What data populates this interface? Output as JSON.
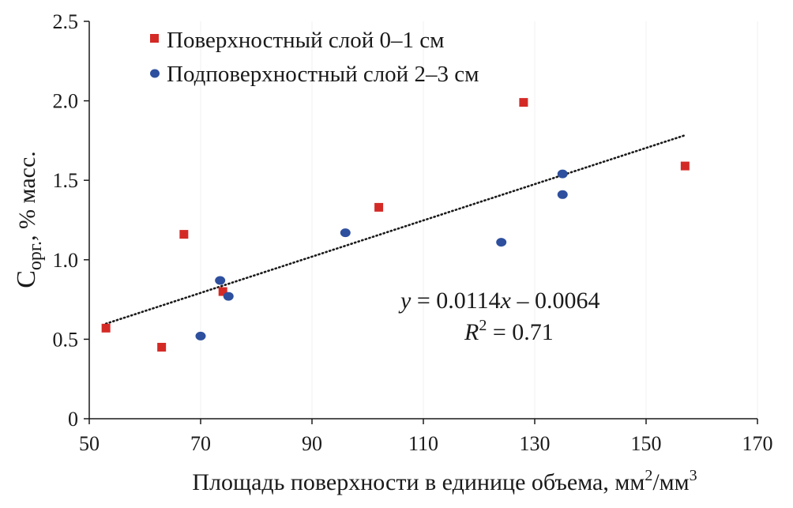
{
  "chart_data": {
    "type": "scatter",
    "title": "",
    "xlabel": "Площадь поверхности в единице объема, мм",
    "xlabel_sup1": "2",
    "xlabel_mid": "/мм",
    "xlabel_sup2": "3",
    "ylabel_main": "C",
    "ylabel_sub": "орг.",
    "ylabel_rest": ", % масс.",
    "xlim": [
      50,
      170
    ],
    "ylim": [
      0,
      2.5
    ],
    "xticks": [
      50,
      70,
      90,
      110,
      130,
      150,
      170
    ],
    "yticks": [
      0,
      0.5,
      1.0,
      1.5,
      2.0,
      2.5
    ],
    "ytick_labels": [
      "0",
      "0.5",
      "1.0",
      "1.5",
      "2.0",
      "2.5"
    ],
    "grid": false,
    "legend_position": "top-left",
    "series": [
      {
        "name": "Поверхностный слой 0–1 см",
        "marker": "square",
        "color": "#d42a26",
        "points": [
          {
            "x": 53,
            "y": 0.57
          },
          {
            "x": 63,
            "y": 0.45
          },
          {
            "x": 67,
            "y": 1.16
          },
          {
            "x": 74,
            "y": 0.8
          },
          {
            "x": 102,
            "y": 1.33
          },
          {
            "x": 128,
            "y": 1.99
          },
          {
            "x": 157,
            "y": 1.59
          }
        ]
      },
      {
        "name": "Подповерхностный слой 2–3 см",
        "marker": "circle",
        "color": "#2e4f9e",
        "points": [
          {
            "x": 70,
            "y": 0.52
          },
          {
            "x": 73.5,
            "y": 0.87
          },
          {
            "x": 75,
            "y": 0.77
          },
          {
            "x": 96,
            "y": 1.17
          },
          {
            "x": 124,
            "y": 1.11
          },
          {
            "x": 135,
            "y": 1.54
          },
          {
            "x": 135,
            "y": 1.41
          }
        ]
      }
    ],
    "trendline": {
      "slope": 0.0114,
      "intercept": -0.0064,
      "x_range": [
        53,
        157
      ],
      "style": "dotted",
      "color": "#1a1a1a",
      "equation_y": "y",
      "equation_rest": " = 0.0114",
      "equation_x": "x",
      "equation_tail": " – 0.0064",
      "r2_label": "R",
      "r2_sup": "2",
      "r2_value": " = 0.71"
    }
  }
}
